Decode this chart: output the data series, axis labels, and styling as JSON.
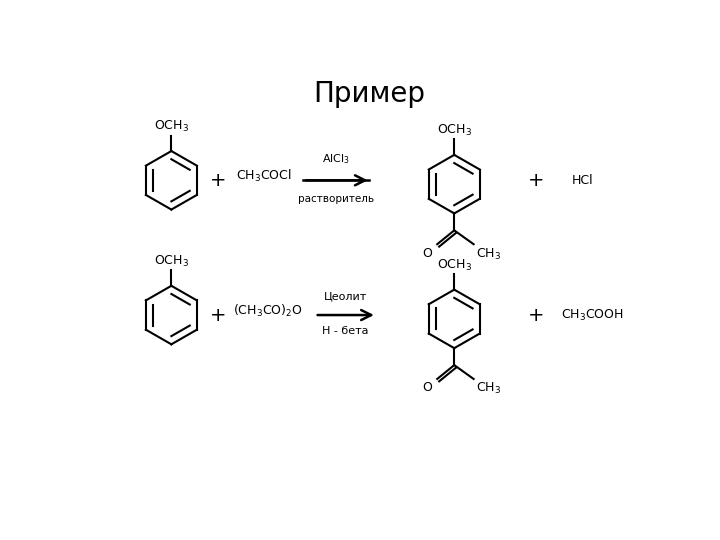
{
  "title": "Пример",
  "background_color": "#ffffff",
  "title_fontsize": 20,
  "reaction1": {
    "reagent2": "CH$_3$COCl",
    "catalyst": "AlCl$_3$",
    "solvent": "растворитель",
    "byproduct": "HCl"
  },
  "reaction2": {
    "reagent2": "(CH$_3$CO)$_2$O",
    "catalyst": "Цеолит",
    "solvent": "Н - бета",
    "byproduct": "CH$_3$COOH"
  }
}
